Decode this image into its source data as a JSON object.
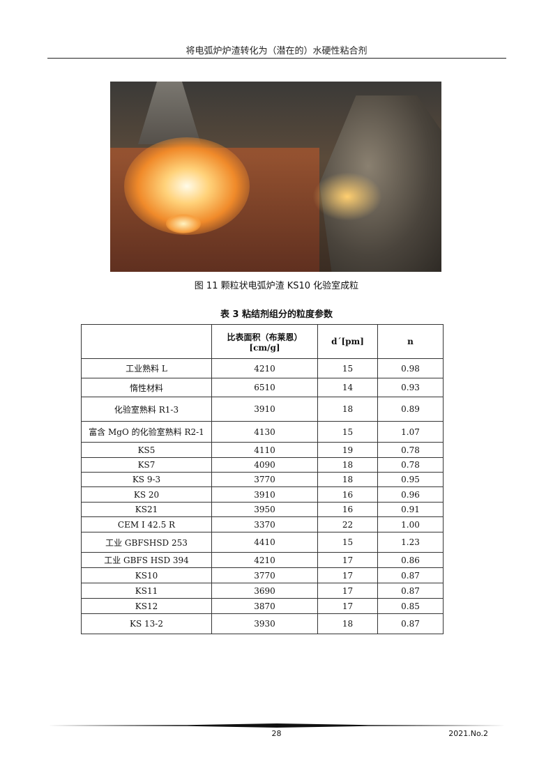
{
  "header": {
    "running_title": "将电弧炉炉渣转化为（潜在的）水硬性粘合剂"
  },
  "figure": {
    "caption": "图 11  颗粒状电弧炉渣 KS10 化验室成粒"
  },
  "table": {
    "title": "表 3  粘结剂组分的粒度参数",
    "headers": [
      "",
      "比表面积（布莱恩）",
      "d´[pm]",
      "n"
    ],
    "header_unit": "[cm/g]",
    "rows": [
      [
        "工业熟料 L",
        "4210",
        "15",
        "0.98"
      ],
      [
        "惰性材料",
        "6510",
        "14",
        "0.93"
      ],
      [
        "化验室熟料 R1-3",
        "3910",
        "18",
        "0.89"
      ],
      [
        "富含 MgO 的化验室熟料 R2-1",
        "4130",
        "15",
        "1.07"
      ],
      [
        "KS5",
        "4110",
        "19",
        "0.78"
      ],
      [
        "KS7",
        "4090",
        "18",
        "0.78"
      ],
      [
        "KS 9-3",
        "3770",
        "18",
        "0.95"
      ],
      [
        "KS 20",
        "3910",
        "16",
        "0.96"
      ],
      [
        "KS21",
        "3950",
        "16",
        "0.91"
      ],
      [
        "CEM I 42.5 R",
        "3370",
        "22",
        "1.00"
      ],
      [
        "工业 GBFSHSD 253",
        "4410",
        "15",
        "1.23"
      ],
      [
        "工业  GBFS HSD 394",
        "4210",
        "17",
        "0.86"
      ],
      [
        "KS10",
        "3770",
        "17",
        "0.87"
      ],
      [
        "KS11",
        "3690",
        "17",
        "0.87"
      ],
      [
        "KS12",
        "3870",
        "17",
        "0.85"
      ],
      [
        "KS 13-2",
        "3930",
        "18",
        "0.87"
      ]
    ]
  },
  "footer": {
    "page_number": "28",
    "issue": "2021.No.2"
  }
}
